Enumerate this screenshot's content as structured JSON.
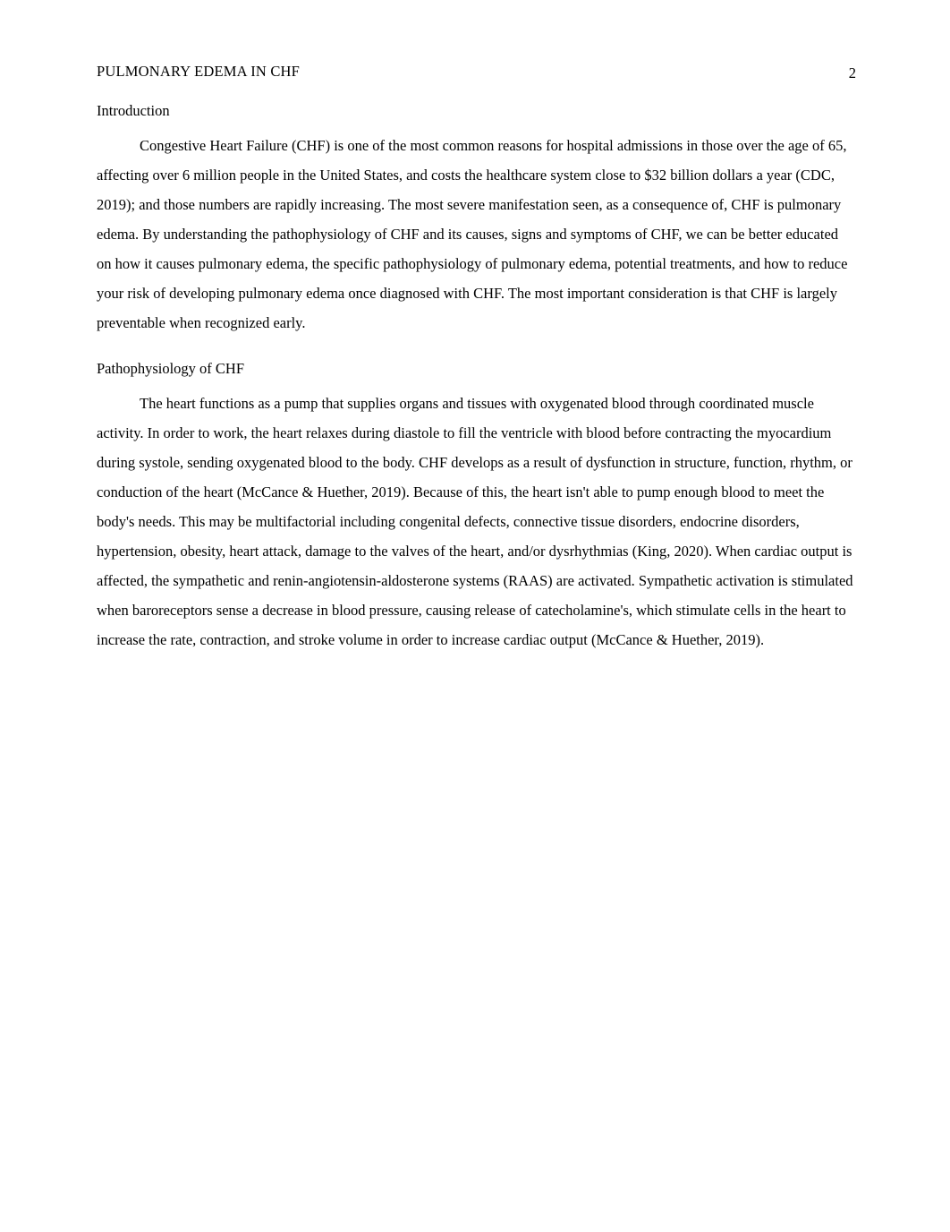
{
  "runningHead": "PULMONARY EDEMA IN CHF",
  "pageNumber": "2",
  "sections": {
    "intro": {
      "heading": "Introduction",
      "paragraph": "Congestive Heart Failure (CHF) is one of the most common reasons for hospital admissions in those over the age of 65, affecting over 6 million people in the United States, and costs the healthcare system close to $32 billion dollars a year (CDC, 2019); and those numbers are rapidly increasing.  The most severe manifestation seen, as a consequence of, CHF is pulmonary edema. By understanding the pathophysiology of CHF and its causes, signs and symptoms of CHF, we can be better educated on how it causes pulmonary edema, the specific pathophysiology of pulmonary edema, potential treatments, and how to reduce your risk of developing pulmonary edema once diagnosed with CHF. The most important consideration is that CHF is largely preventable when recognized early."
    },
    "patho": {
      "heading": "Pathophysiology of CHF",
      "paragraph": "The heart functions as a pump that supplies organs and tissues with oxygenated blood through coordinated muscle activity. In order to work, the heart relaxes during diastole to fill the ventricle with blood before contracting the myocardium during systole, sending oxygenated blood to the body. CHF develops as a result of dysfunction in structure, function, rhythm, or conduction of the heart (McCance & Huether, 2019). Because of this, the heart isn't able to pump enough blood to meet the body's needs. This may be multifactorial including congenital defects, connective tissue disorders, endocrine disorders, hypertension, obesity, heart attack, damage to the valves of the heart, and/or dysrhythmias (King, 2020).  When cardiac output is affected, the sympathetic and renin-angiotensin-aldosterone systems (RAAS) are activated. Sympathetic activation is stimulated when baroreceptors sense a decrease in blood pressure, causing release of catecholamine's, which stimulate cells in the heart to increase the rate, contraction, and stroke volume in order to increase cardiac output (McCance & Huether, 2019)."
    }
  }
}
